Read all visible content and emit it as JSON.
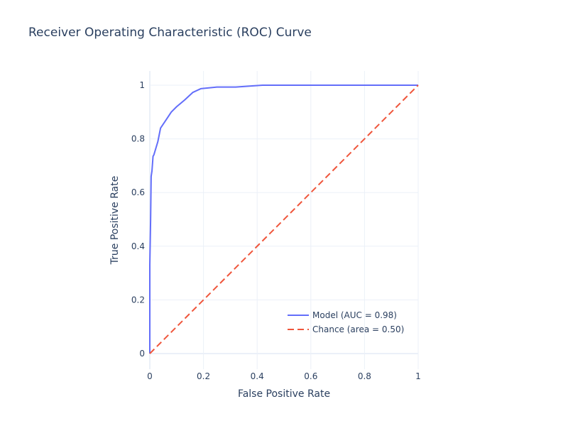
{
  "chart_data": {
    "type": "line",
    "title": "Receiver Operating Characteristic (ROC) Curve",
    "xlabel": "False Positive Rate",
    "ylabel": "True Positive Rate",
    "xlim": [
      0,
      1
    ],
    "ylim": [
      0,
      1
    ],
    "x_ticks": [
      0,
      0.2,
      0.4,
      0.6,
      0.8,
      1
    ],
    "x_tick_labels": [
      "0",
      "0.2",
      "0.4",
      "0.6",
      "0.8",
      "1"
    ],
    "y_ticks": [
      0,
      0.2,
      0.4,
      0.6,
      0.8,
      1
    ],
    "y_tick_labels": [
      "0",
      "0.2",
      "0.4",
      "0.6",
      "0.8",
      "1"
    ],
    "grid": true,
    "legend_position": "bottom-right",
    "series": [
      {
        "name": "Model (AUC = 0.98)",
        "color": "#636efa",
        "dash": "solid",
        "x": [
          0,
          0,
          0.003,
          0.005,
          0.008,
          0.012,
          0.015,
          0.03,
          0.04,
          0.06,
          0.08,
          0.1,
          0.13,
          0.16,
          0.19,
          0.25,
          0.32,
          0.42,
          0.5,
          0.7,
          1.0
        ],
        "y": [
          0,
          0.33,
          0.5,
          0.66,
          0.68,
          0.735,
          0.74,
          0.79,
          0.84,
          0.87,
          0.9,
          0.92,
          0.945,
          0.973,
          0.987,
          0.993,
          0.993,
          1.0,
          1.0,
          1.0,
          1.0
        ]
      },
      {
        "name": "Chance (area = 0.50)",
        "color": "#ef553b",
        "dash": "dashed",
        "x": [
          0,
          1
        ],
        "y": [
          0,
          1
        ]
      }
    ]
  }
}
